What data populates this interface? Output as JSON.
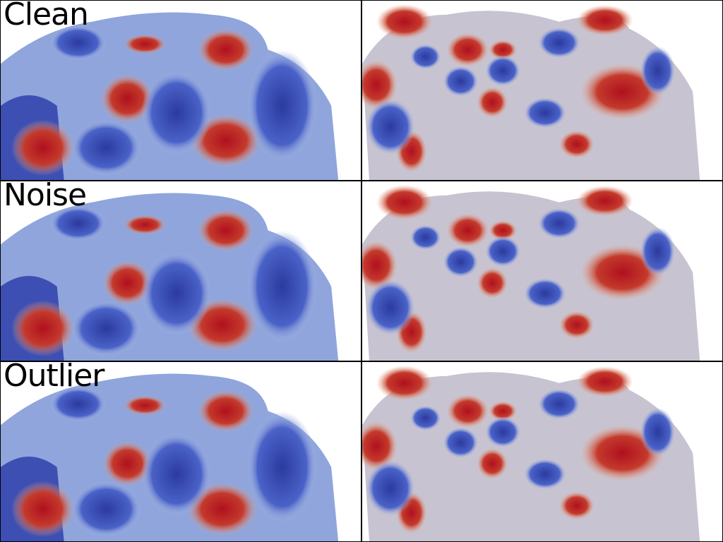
{
  "rows": [
    {
      "label": "Clean"
    },
    {
      "label": "Noise"
    },
    {
      "label": "Outlier"
    }
  ],
  "colors": {
    "deep_blue": "#2b3a9e",
    "blue": "#4a62c8",
    "light_blue": "#aebfe6",
    "neutral": "#e8e2dc",
    "light_red": "#e9a88a",
    "red": "#c43a2c",
    "deep_red": "#b0101e"
  }
}
